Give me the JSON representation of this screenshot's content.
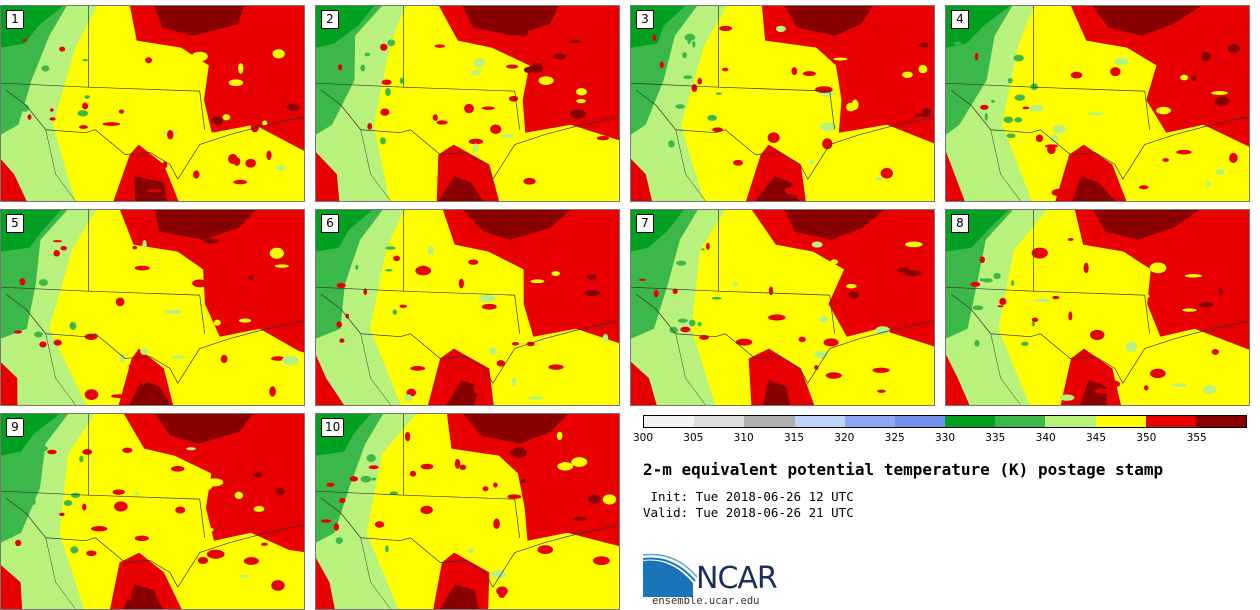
{
  "panels": [
    {
      "label": "1"
    },
    {
      "label": "2"
    },
    {
      "label": "3"
    },
    {
      "label": "4"
    },
    {
      "label": "5"
    },
    {
      "label": "6"
    },
    {
      "label": "7"
    },
    {
      "label": "8"
    },
    {
      "label": "9"
    },
    {
      "label": "10"
    }
  ],
  "colorbar": {
    "colors": [
      "#f2f2f2",
      "#dcdcdc",
      "#b0b0b0",
      "#bfd2f7",
      "#8fa6f0",
      "#7090ea",
      "#00a020",
      "#3cb84a",
      "#b8f27c",
      "#ffff00",
      "#e80000",
      "#880000"
    ],
    "ticks": [
      "300",
      "305",
      "310",
      "315",
      "320",
      "325",
      "330",
      "335",
      "340",
      "345",
      "350",
      "355"
    ]
  },
  "title": "2-m equivalent potential temperature (K) postage stamp",
  "init": " Init: Tue 2018-06-26 12 UTC",
  "valid": "Valid: Tue 2018-06-26 21 UTC",
  "logo": {
    "text": "NCAR",
    "site": "ensemble.ucar.edu"
  }
}
